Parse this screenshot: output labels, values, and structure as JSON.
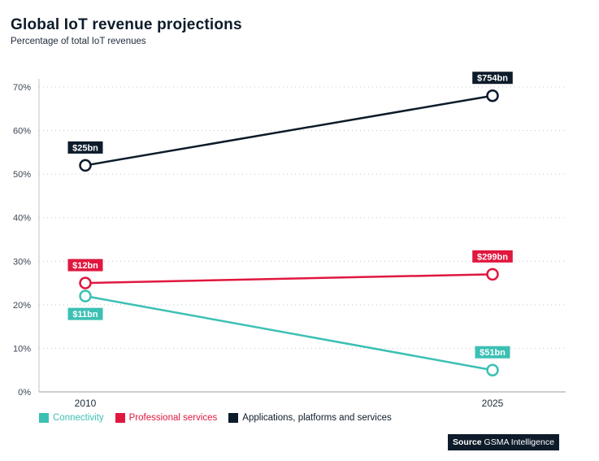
{
  "title": "Global IoT revenue projections",
  "subtitle": "Percentage of total IoT revenues",
  "source": {
    "label": "Source",
    "text": "GSMA Intelligence"
  },
  "colors": {
    "connectivity": "#3cc0b4",
    "professional": "#e0173f",
    "applications": "#0d1b2a"
  },
  "chart_data": {
    "type": "line",
    "x": [
      "2010",
      "2025"
    ],
    "ylim": [
      0,
      70
    ],
    "yticks": [
      "0%",
      "10%",
      "20%",
      "30%",
      "40%",
      "50%",
      "60%",
      "70%"
    ],
    "grid": true,
    "legend_position": "bottom-left",
    "series": [
      {
        "name": "Connectivity",
        "color": "#3cc0b4",
        "values": [
          22,
          5
        ],
        "labels": [
          "$11bn",
          "$51bn"
        ]
      },
      {
        "name": "Professional services",
        "color": "#e0173f",
        "values": [
          25,
          27
        ],
        "labels": [
          "$12bn",
          "$299bn"
        ]
      },
      {
        "name": "Applications, platforms and services",
        "color": "#0d1b2a",
        "values": [
          52,
          68
        ],
        "labels": [
          "$25bn",
          "$754bn"
        ]
      }
    ]
  }
}
